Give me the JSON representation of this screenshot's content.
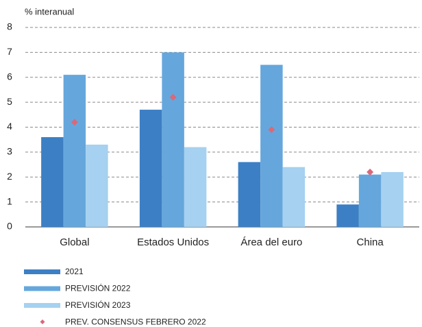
{
  "chart_data": {
    "type": "bar",
    "y_label": "% interanual",
    "categories": [
      "Global",
      "Estados Unidos",
      "Área del euro",
      "China"
    ],
    "series": [
      {
        "name": "2021",
        "color": "#3d7fc4",
        "values": [
          3.6,
          4.7,
          2.6,
          0.9
        ]
      },
      {
        "name": "PREVISIÓN 2022",
        "color": "#65a7dc",
        "values": [
          6.1,
          7.0,
          6.5,
          2.1
        ]
      },
      {
        "name": "PREVISIÓN 2023",
        "color": "#a6d1f0",
        "values": [
          3.3,
          3.2,
          2.4,
          2.2
        ]
      },
      {
        "name": "PREV. CONSENSUS FEBRERO 2022",
        "color": "#d9697a",
        "type": "scatter",
        "values": [
          4.2,
          5.2,
          3.9,
          2.2
        ]
      }
    ],
    "ylim": [
      0,
      8
    ],
    "yticks": [
      0,
      1,
      2,
      3,
      4,
      5,
      6,
      7,
      8
    ],
    "grid": true
  }
}
